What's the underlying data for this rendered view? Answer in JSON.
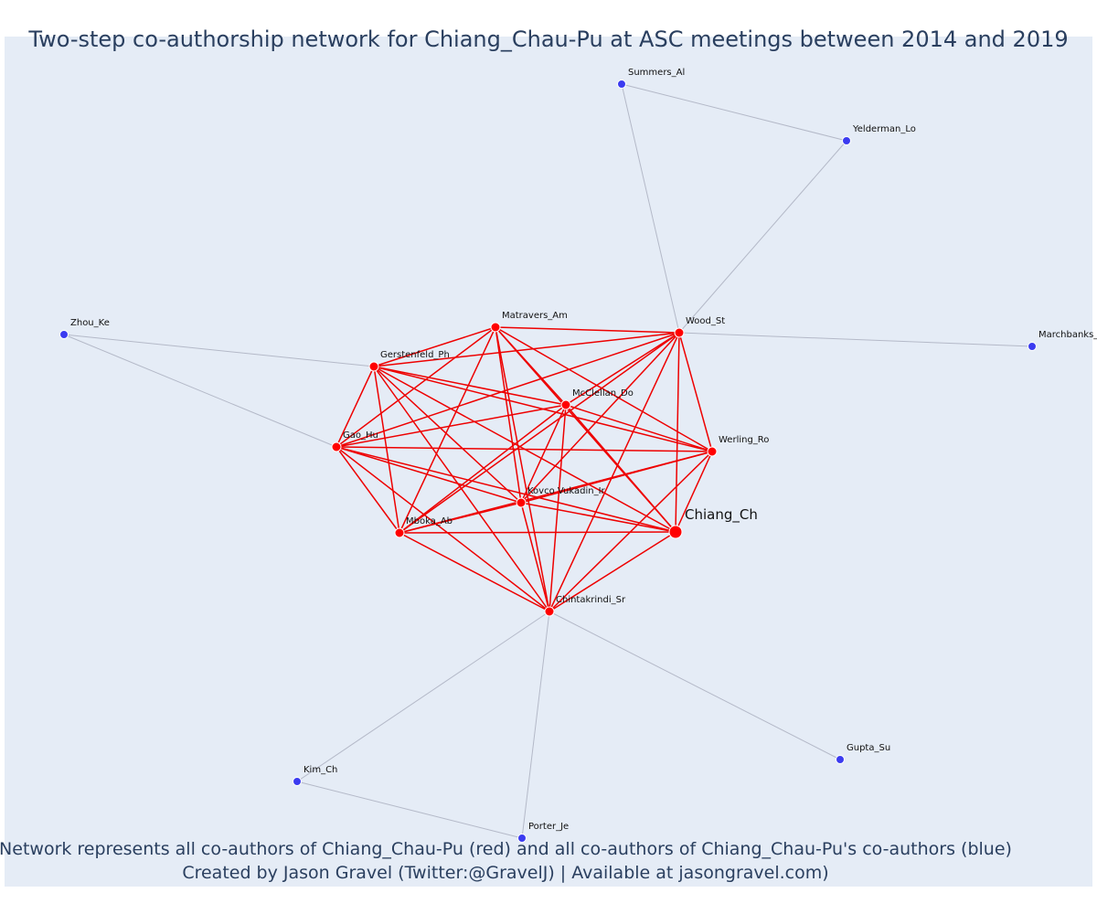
{
  "title": "Two-step co-authorship network for Chiang_Chau-Pu at ASC meetings between 2014 and 2019",
  "caption": {
    "line1": "Network represents all co-authors of Chiang_Chau-Pu (red) and all co-authors of Chiang_Chau-Pu's co-authors (blue)",
    "line2": "Created by Jason Gravel (Twitter:@GravelJ) | Available at jasongravel.com)"
  },
  "colors": {
    "primary": "#ff0000",
    "secondary": "#3b3bf0",
    "primary_edge": "#ee0000",
    "secondary_edge": "#b4b9c8",
    "background": "#e5ecf6",
    "text": "#2a3f5f"
  },
  "nodes": [
    {
      "id": "Chiang_Ch",
      "group": "primary",
      "focal": true
    },
    {
      "id": "Matravers_Am",
      "group": "primary"
    },
    {
      "id": "Wood_St",
      "group": "primary"
    },
    {
      "id": "Gerstenfeld_Ph",
      "group": "primary"
    },
    {
      "id": "McClellan_Do",
      "group": "primary"
    },
    {
      "id": "Gao_Hu",
      "group": "primary"
    },
    {
      "id": "Werling_Ro",
      "group": "primary"
    },
    {
      "id": "Kovco Vukadin_Ir",
      "group": "primary"
    },
    {
      "id": "Mboka_Ab",
      "group": "primary"
    },
    {
      "id": "Chintakrindi_Sr",
      "group": "primary"
    },
    {
      "id": "Summers_Al",
      "group": "secondary"
    },
    {
      "id": "Yelderman_Lo",
      "group": "secondary"
    },
    {
      "id": "Zhou_Ke",
      "group": "secondary"
    },
    {
      "id": "Marchbanks_",
      "group": "secondary"
    },
    {
      "id": "Gupta_Su",
      "group": "secondary"
    },
    {
      "id": "Kim_Ch",
      "group": "secondary"
    },
    {
      "id": "Porter_Je",
      "group": "secondary"
    }
  ],
  "edges": [
    [
      "Wood_St",
      "Summers_Al"
    ],
    [
      "Wood_St",
      "Yelderman_Lo"
    ],
    [
      "Summers_Al",
      "Yelderman_Lo"
    ],
    [
      "Wood_St",
      "Marchbanks_"
    ],
    [
      "Gerstenfeld_Ph",
      "Zhou_Ke"
    ],
    [
      "Gao_Hu",
      "Zhou_Ke"
    ],
    [
      "Chintakrindi_Sr",
      "Kim_Ch"
    ],
    [
      "Chintakrindi_Sr",
      "Porter_Je"
    ],
    [
      "Chintakrindi_Sr",
      "Gupta_Su"
    ],
    [
      "Kim_Ch",
      "Porter_Je"
    ]
  ]
}
